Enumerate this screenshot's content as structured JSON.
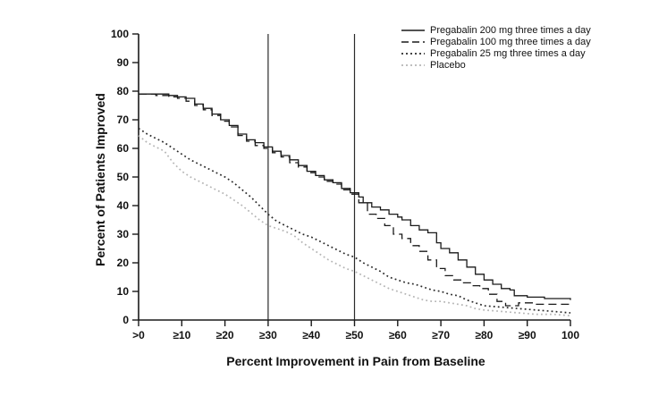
{
  "figure": {
    "background_color": "#ffffff",
    "text_color": "#111111",
    "axis_color": "#1a1a1a"
  },
  "chart_data": {
    "type": "line",
    "title": "",
    "xlabel": "Percent Improvement in Pain from Baseline",
    "ylabel": "Percent of Patients Improved",
    "xlim": [
      0,
      100
    ],
    "ylim": [
      0,
      100
    ],
    "grid": false,
    "legend_position": "top-right",
    "x_tick_values": [
      0,
      10,
      20,
      30,
      40,
      50,
      60,
      70,
      80,
      90,
      100
    ],
    "x_tick_labels": [
      ">0",
      "≥10",
      "≥20",
      "≥30",
      "≥40",
      "≥50",
      "≥60",
      "≥70",
      "≥80",
      "≥90",
      "100"
    ],
    "y_tick_values": [
      0,
      10,
      20,
      30,
      40,
      50,
      60,
      70,
      80,
      90,
      100
    ],
    "reference_lines_x": [
      30,
      50
    ],
    "series": [
      {
        "name": "Pregabalin 200 mg three times a day",
        "line_style": "solid",
        "color": "#1a1a1a",
        "points": [
          [
            0,
            79
          ],
          [
            4,
            79
          ],
          [
            7,
            78.5
          ],
          [
            9,
            78
          ],
          [
            11,
            77.5
          ],
          [
            13,
            75.5
          ],
          [
            15,
            74
          ],
          [
            17,
            72
          ],
          [
            19,
            70
          ],
          [
            21,
            68
          ],
          [
            23,
            65
          ],
          [
            25,
            63
          ],
          [
            27,
            62
          ],
          [
            29,
            60.5
          ],
          [
            31,
            59
          ],
          [
            33,
            57.5
          ],
          [
            35,
            56
          ],
          [
            37,
            54
          ],
          [
            39,
            52
          ],
          [
            41,
            50.5
          ],
          [
            43,
            49
          ],
          [
            45,
            48
          ],
          [
            47,
            46
          ],
          [
            49,
            44.5
          ],
          [
            51,
            43
          ],
          [
            52,
            41
          ],
          [
            54,
            39.5
          ],
          [
            56,
            38.5
          ],
          [
            58,
            37
          ],
          [
            60,
            36
          ],
          [
            61,
            35
          ],
          [
            63,
            33
          ],
          [
            65,
            31.5
          ],
          [
            67,
            30.5
          ],
          [
            69,
            27
          ],
          [
            70,
            25
          ],
          [
            72,
            23.5
          ],
          [
            74,
            21
          ],
          [
            76,
            18.5
          ],
          [
            78,
            16
          ],
          [
            80,
            14
          ],
          [
            82,
            12.5
          ],
          [
            84,
            11
          ],
          [
            86,
            10.5
          ],
          [
            87,
            8.5
          ],
          [
            90,
            8
          ],
          [
            94,
            7.5
          ],
          [
            100,
            7
          ]
        ]
      },
      {
        "name": "Pregabalin 100 mg three times a day",
        "line_style": "dashed",
        "color": "#1a1a1a",
        "points": [
          [
            0,
            79
          ],
          [
            4,
            78.5
          ],
          [
            7,
            78
          ],
          [
            9,
            77.5
          ],
          [
            11,
            76.5
          ],
          [
            13,
            75
          ],
          [
            15,
            73.5
          ],
          [
            17,
            71.5
          ],
          [
            19,
            69.5
          ],
          [
            21,
            67.5
          ],
          [
            23,
            64.5
          ],
          [
            25,
            62.5
          ],
          [
            27,
            61
          ],
          [
            29,
            60
          ],
          [
            31,
            58.5
          ],
          [
            33,
            57
          ],
          [
            35,
            55
          ],
          [
            37,
            53.5
          ],
          [
            39,
            51.5
          ],
          [
            41,
            50
          ],
          [
            43,
            48.5
          ],
          [
            45,
            47.5
          ],
          [
            47,
            45.5
          ],
          [
            49,
            44
          ],
          [
            51,
            41
          ],
          [
            53,
            37
          ],
          [
            55,
            35.5
          ],
          [
            57,
            33
          ],
          [
            59,
            30
          ],
          [
            61,
            28.5
          ],
          [
            63,
            26
          ],
          [
            65,
            24
          ],
          [
            67,
            21
          ],
          [
            69,
            18
          ],
          [
            71,
            15.5
          ],
          [
            73,
            14
          ],
          [
            75,
            13
          ],
          [
            77,
            12
          ],
          [
            79,
            11
          ],
          [
            81,
            9
          ],
          [
            83,
            6.5
          ],
          [
            85,
            5
          ],
          [
            88,
            6
          ],
          [
            92,
            5.5
          ],
          [
            96,
            5.5
          ],
          [
            100,
            5
          ]
        ]
      },
      {
        "name": "Pregabalin 25 mg three times a day",
        "line_style": "dotted",
        "color": "#2a2a2a",
        "points": [
          [
            0,
            67
          ],
          [
            2,
            65
          ],
          [
            4,
            63.5
          ],
          [
            6,
            62
          ],
          [
            8,
            60
          ],
          [
            10,
            58
          ],
          [
            12,
            56
          ],
          [
            14,
            54.5
          ],
          [
            16,
            53
          ],
          [
            18,
            51.5
          ],
          [
            20,
            50
          ],
          [
            22,
            48
          ],
          [
            24,
            45.5
          ],
          [
            26,
            43
          ],
          [
            28,
            40
          ],
          [
            30,
            37
          ],
          [
            32,
            34.5
          ],
          [
            34,
            33
          ],
          [
            36,
            31.5
          ],
          [
            38,
            30
          ],
          [
            40,
            29
          ],
          [
            42,
            27.5
          ],
          [
            44,
            26
          ],
          [
            46,
            24.5
          ],
          [
            48,
            23
          ],
          [
            50,
            22
          ],
          [
            52,
            20
          ],
          [
            54,
            18.5
          ],
          [
            56,
            17
          ],
          [
            58,
            15
          ],
          [
            60,
            14
          ],
          [
            62,
            13
          ],
          [
            64,
            12.5
          ],
          [
            66,
            11.5
          ],
          [
            68,
            10.5
          ],
          [
            70,
            10
          ],
          [
            72,
            9
          ],
          [
            74,
            8.5
          ],
          [
            76,
            7
          ],
          [
            78,
            6
          ],
          [
            80,
            5
          ],
          [
            84,
            4.5
          ],
          [
            88,
            4
          ],
          [
            92,
            3.5
          ],
          [
            96,
            3
          ],
          [
            100,
            2.5
          ]
        ]
      },
      {
        "name": "Placebo",
        "line_style": "dotted",
        "color": "#b5b5b5",
        "points": [
          [
            0,
            64.5
          ],
          [
            2,
            62
          ],
          [
            4,
            60.5
          ],
          [
            6,
            59
          ],
          [
            8,
            55
          ],
          [
            10,
            52
          ],
          [
            12,
            50
          ],
          [
            14,
            48.5
          ],
          [
            16,
            47
          ],
          [
            18,
            45.5
          ],
          [
            20,
            44
          ],
          [
            22,
            42
          ],
          [
            24,
            40
          ],
          [
            26,
            37.5
          ],
          [
            28,
            35
          ],
          [
            30,
            33
          ],
          [
            32,
            32
          ],
          [
            34,
            31
          ],
          [
            36,
            29.5
          ],
          [
            38,
            27
          ],
          [
            40,
            25
          ],
          [
            42,
            23
          ],
          [
            44,
            21
          ],
          [
            46,
            19.5
          ],
          [
            48,
            18
          ],
          [
            50,
            17
          ],
          [
            52,
            15.5
          ],
          [
            54,
            14
          ],
          [
            56,
            12.5
          ],
          [
            58,
            11
          ],
          [
            60,
            10
          ],
          [
            62,
            9
          ],
          [
            64,
            8
          ],
          [
            66,
            7
          ],
          [
            68,
            6.5
          ],
          [
            70,
            6.5
          ],
          [
            72,
            6
          ],
          [
            74,
            5.5
          ],
          [
            76,
            5
          ],
          [
            78,
            4
          ],
          [
            80,
            3.5
          ],
          [
            84,
            3
          ],
          [
            88,
            2.5
          ],
          [
            92,
            2
          ],
          [
            96,
            2
          ],
          [
            100,
            1.5
          ]
        ]
      }
    ]
  }
}
